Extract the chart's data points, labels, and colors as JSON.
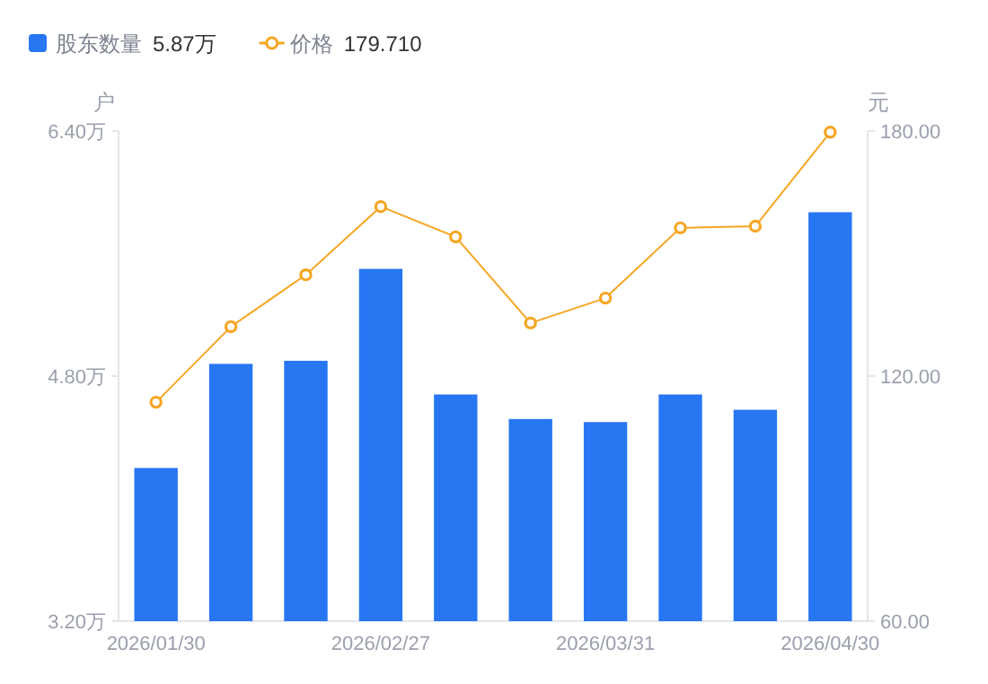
{
  "chart_data": {
    "type": "bar",
    "categories": [
      "2026/01/30",
      null,
      null,
      "2026/02/27",
      null,
      null,
      "2026/03/31",
      null,
      null,
      "2026/04/30"
    ],
    "series": [
      {
        "name": "股东数量",
        "color": "#2776f2",
        "values": [
          4.2,
          4.88,
          4.9,
          5.5,
          4.68,
          4.52,
          4.5,
          4.68,
          4.58,
          5.87
        ]
      },
      {
        "name": "价格",
        "type": "line",
        "axis": "y2",
        "color": "#f5a623",
        "marker": "circle",
        "values": [
          113.6,
          132.1,
          144.8,
          161.5,
          154.1,
          133.0,
          139.1,
          156.3,
          156.7,
          179.71
        ]
      }
    ],
    "ylabel": "户",
    "y2label": "元",
    "ylim": [
      3.2,
      6.4
    ],
    "yticks": [
      {
        "value": 3.2,
        "label": "3.20万"
      },
      {
        "value": 4.8,
        "label": "4.80万"
      },
      {
        "value": 6.4,
        "label": "6.40万"
      }
    ],
    "y2lim": [
      60,
      180
    ],
    "y2ticks": [
      {
        "value": 60,
        "label": "60.00"
      },
      {
        "value": 120,
        "label": "120.00"
      },
      {
        "value": 180,
        "label": "180.00"
      }
    ],
    "annotations": [
      "5.87万",
      "179.710"
    ],
    "legend": "top left",
    "grid": false
  }
}
